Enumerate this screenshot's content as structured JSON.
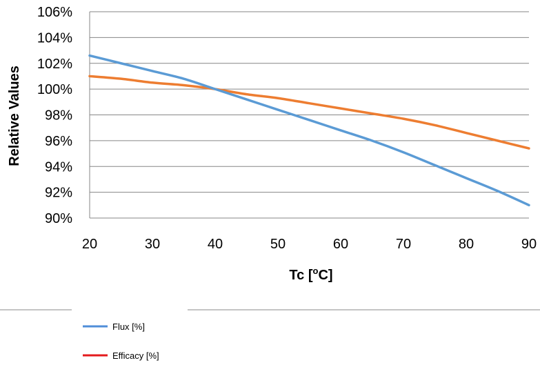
{
  "chart_data": {
    "type": "line",
    "title": "",
    "xlabel": {
      "pre": "Tc [",
      "sup": "o",
      "post": "C]"
    },
    "ylabel": "Relative Values",
    "xlim": [
      20,
      90
    ],
    "ylim": [
      90,
      106
    ],
    "x_ticks": [
      "20",
      "30",
      "40",
      "50",
      "60",
      "70",
      "80",
      "90"
    ],
    "y_ticks": [
      "90%",
      "92%",
      "94%",
      "96%",
      "98%",
      "100%",
      "102%",
      "104%",
      "106%"
    ],
    "grid": "horizontal",
    "legend_position": "bottom-left",
    "series": [
      {
        "name": "Flux [%]",
        "color": "#5B9BD5",
        "legend_color": "#4F8ED8",
        "x": [
          20,
          25,
          30,
          35,
          40,
          45,
          50,
          55,
          60,
          65,
          70,
          75,
          80,
          85,
          90
        ],
        "y": [
          102.6,
          102.0,
          101.4,
          100.8,
          100.0,
          99.2,
          98.4,
          97.6,
          96.8,
          96.0,
          95.1,
          94.1,
          93.1,
          92.1,
          91.0
        ]
      },
      {
        "name": "Efficacy [%]",
        "color": "#ED7D31",
        "legend_color": "#E41A1C",
        "x": [
          20,
          25,
          30,
          35,
          40,
          45,
          50,
          55,
          60,
          65,
          70,
          75,
          80,
          85,
          90
        ],
        "y": [
          101.0,
          100.8,
          100.5,
          100.3,
          100.0,
          99.6,
          99.3,
          98.9,
          98.5,
          98.1,
          97.7,
          97.2,
          96.6,
          96.0,
          95.4
        ]
      }
    ]
  }
}
